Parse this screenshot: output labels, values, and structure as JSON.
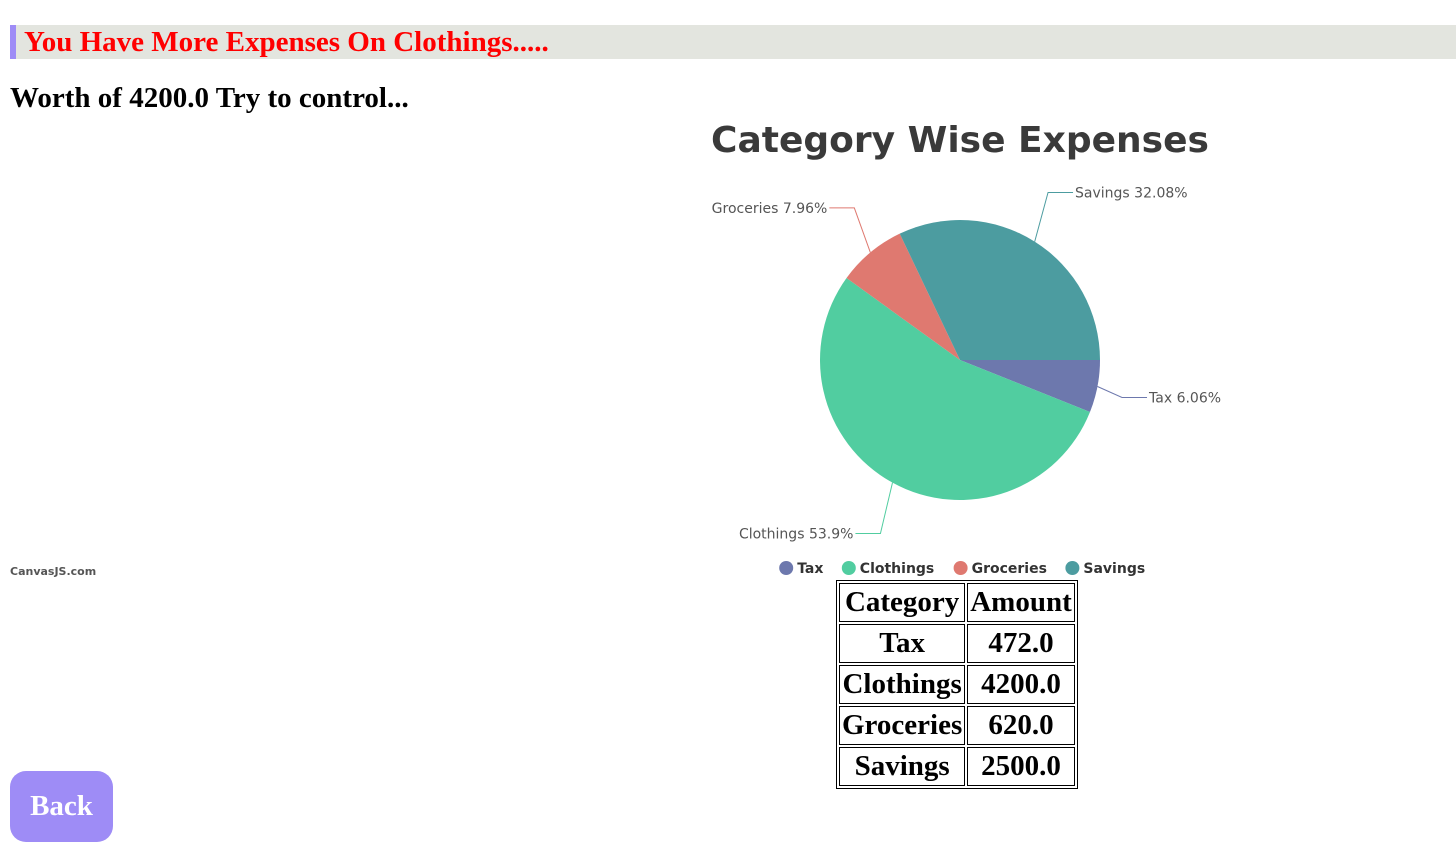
{
  "alert": {
    "message": "You Have More Expenses On Clothings....."
  },
  "advice": {
    "text": "Worth of 4200.0 Try to control..."
  },
  "chart_data": {
    "type": "pie",
    "title": "Category Wise Expenses",
    "categories": [
      "Tax",
      "Clothings",
      "Groceries",
      "Savings"
    ],
    "values": [
      472.0,
      4200.0,
      620.0,
      2500.0
    ],
    "percent_labels": [
      "Tax 6.06%",
      "Clothings 53.9%",
      "Groceries 7.96%",
      "Savings 32.08%"
    ],
    "colors": [
      "#6d78ad",
      "#51cda0",
      "#df7970",
      "#4c9ca0"
    ],
    "legend_position": "bottom",
    "credit": "CanvasJS.com"
  },
  "table": {
    "headers": [
      "Category",
      "Amount"
    ],
    "rows": [
      [
        "Tax",
        "472.0"
      ],
      [
        "Clothings",
        "4200.0"
      ],
      [
        "Groceries",
        "620.0"
      ],
      [
        "Savings",
        "2500.0"
      ]
    ]
  },
  "back_button": {
    "label": "Back"
  }
}
